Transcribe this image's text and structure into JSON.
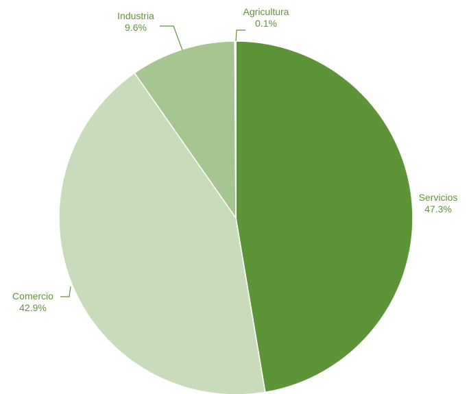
{
  "chart_data": {
    "type": "pie",
    "title": "",
    "start": "12 o'clock",
    "direction": "clockwise",
    "slices": [
      {
        "label": "Servicios",
        "value": 47.3,
        "value_label": "47.3%",
        "color": "#5e9438"
      },
      {
        "label": "Comercio",
        "value": 42.9,
        "value_label": "42.9%",
        "color": "#c8dcbc"
      },
      {
        "label": "Industria",
        "value": 9.6,
        "value_label": "9.6%",
        "color": "#a6c590"
      },
      {
        "label": "Agricultura",
        "value": 0.1,
        "value_label": "0.1%",
        "color": "#5e9438"
      }
    ],
    "label_color": "#5e9438",
    "legend": "none"
  }
}
